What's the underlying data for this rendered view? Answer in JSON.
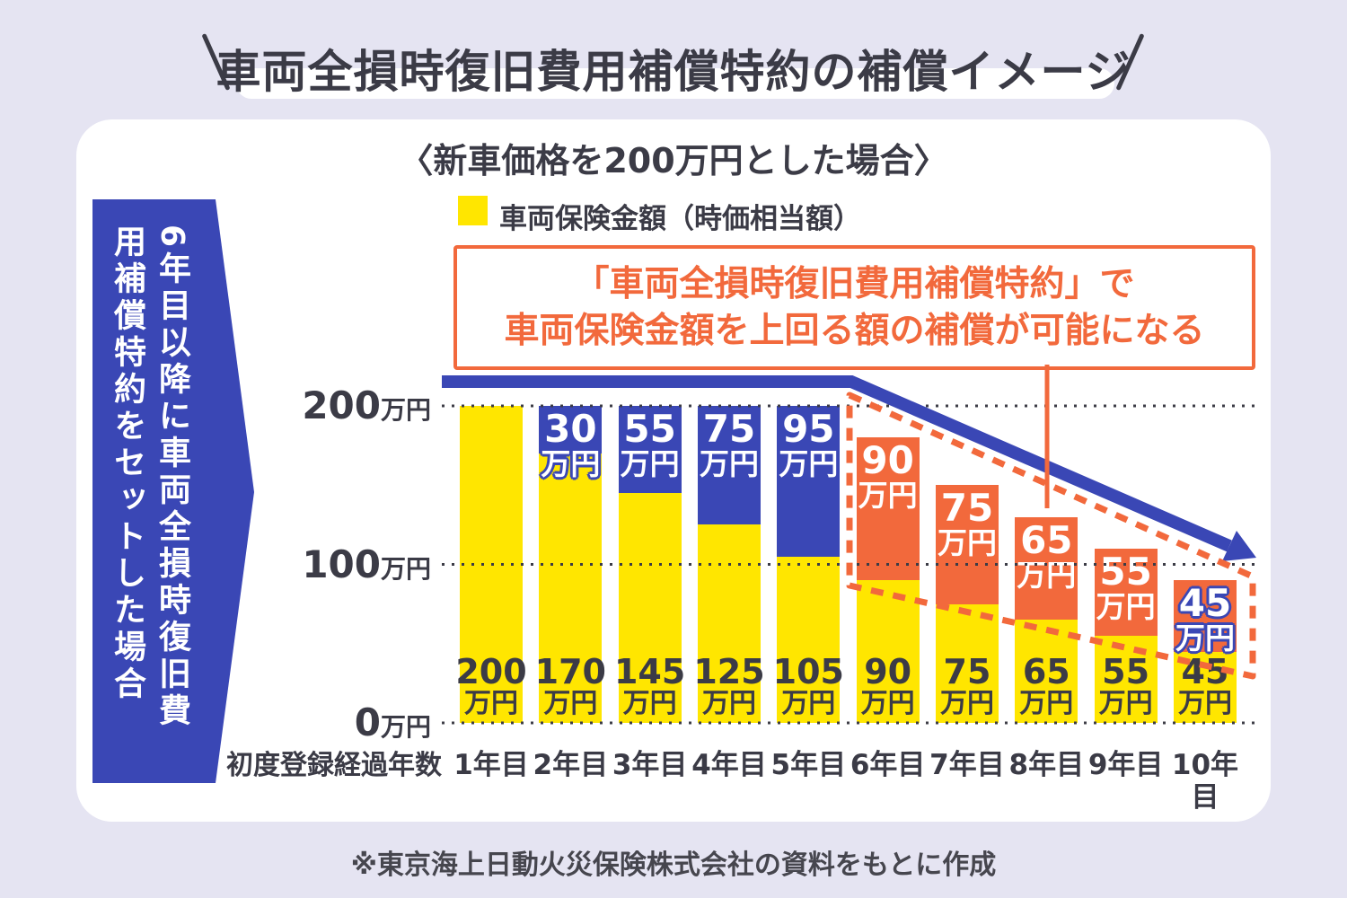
{
  "page_title": "車両全損時復旧費用補償特約の補償イメージ",
  "subtitle": "〈新車価格を200万円とした場合〉",
  "legend": {
    "label": "車両保険金額（時価相当額）",
    "swatch_color": "#FFE600"
  },
  "callout": {
    "line1": "「車両全損時復旧費用補償特約」で",
    "line2": "車両保険金額を上回る額の補償が可能になる"
  },
  "side_banner": {
    "line1": "6年目以降に車両全損時復旧費",
    "line2": "用補償特約をセットした場合"
  },
  "footer_note": "※東京海上日動火災保険株式会社の資料をもとに作成",
  "colors": {
    "background": "#E5E4F2",
    "card": "#FFFFFF",
    "blue": "#3A47B5",
    "yellow": "#FFE600",
    "orange": "#F2693C",
    "dark_text": "#3B3B46"
  },
  "chart_data": {
    "type": "bar",
    "stacked": true,
    "unit": "万円",
    "title": "〈新車価格を200万円とした場合〉",
    "x_axis_title": "初度登録経過年数",
    "ylim": [
      0,
      200
    ],
    "y_ticks": [
      0,
      100,
      200
    ],
    "grid": "dotted",
    "legend_position": "top",
    "legend_entries": [
      {
        "label": "車両保険金額（時価相当額）",
        "color": "#FFE600"
      }
    ],
    "bars": [
      {
        "category": "1年目",
        "base": 200,
        "top": 0,
        "top_type": "none"
      },
      {
        "category": "2年目",
        "base": 170,
        "top": 30,
        "top_type": "blue"
      },
      {
        "category": "3年目",
        "base": 145,
        "top": 55,
        "top_type": "blue"
      },
      {
        "category": "4年目",
        "base": 125,
        "top": 75,
        "top_type": "blue"
      },
      {
        "category": "5年目",
        "base": 105,
        "top": 95,
        "top_type": "blue"
      },
      {
        "category": "6年目",
        "base": 90,
        "top": 90,
        "top_type": "orange"
      },
      {
        "category": "7年目",
        "base": 75,
        "top": 75,
        "top_type": "orange"
      },
      {
        "category": "8年目",
        "base": 65,
        "top": 65,
        "top_type": "orange"
      },
      {
        "category": "9年目",
        "base": 55,
        "top": 55,
        "top_type": "orange"
      },
      {
        "category": "10年目",
        "base": 45,
        "top": 45,
        "top_type": "orange"
      }
    ]
  }
}
